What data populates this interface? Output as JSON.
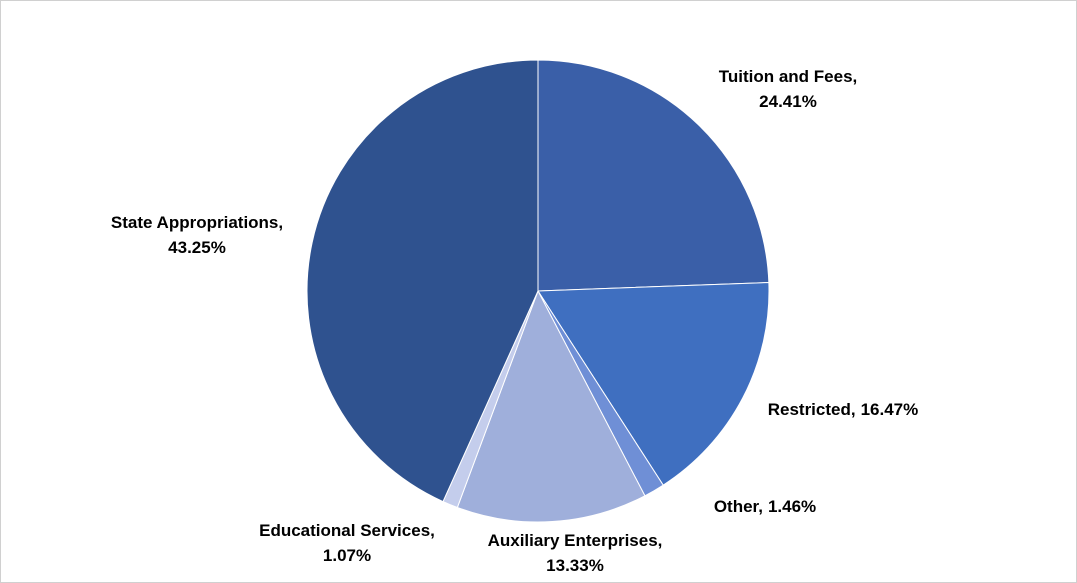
{
  "chart_data": {
    "type": "pie",
    "categories": [
      "Tuition and Fees,",
      "Restricted,",
      "Other,",
      "Auxiliary Enterprises,",
      "Educational Services,",
      "State Appropriations,"
    ],
    "values": [
      24.41,
      16.47,
      1.46,
      13.33,
      1.07,
      43.25
    ],
    "value_labels": [
      "24.41%",
      "16.47%",
      "1.46%",
      "13.33%",
      "1.07%",
      "43.25%"
    ],
    "colors": [
      "#3a5fa8",
      "#3f6fc0",
      "#6f8fd6",
      "#9fafdb",
      "#c4cdec",
      "#2f528f"
    ]
  }
}
